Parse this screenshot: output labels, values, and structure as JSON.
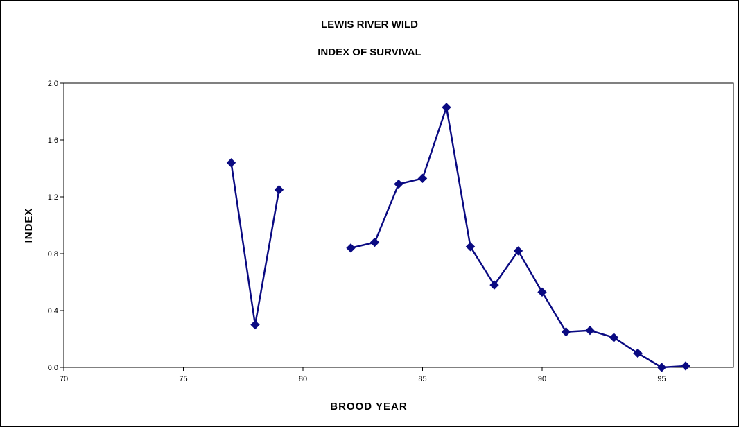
{
  "chart_data": {
    "type": "line",
    "title": [
      "LEWIS RIVER WILD",
      "INDEX OF SURVIVAL"
    ],
    "xlabel": "BROOD YEAR",
    "ylabel": "INDEX",
    "xlim": [
      70,
      98
    ],
    "ylim": [
      0,
      2.0
    ],
    "x_ticks": [
      70,
      75,
      80,
      85,
      90,
      95
    ],
    "x_tick_labels": [
      "70",
      "75",
      "80",
      "85",
      "90",
      "95"
    ],
    "y_ticks": [
      0,
      0.4,
      0.8,
      1.2,
      1.6,
      2.0
    ],
    "y_tick_labels": [
      "0.0",
      "0.4",
      "0.8",
      "1.2",
      "1.6",
      "2.0"
    ],
    "grid": false,
    "legend": "none",
    "series": [
      {
        "color": "#0A0A82",
        "marker": "diamond",
        "points": [
          {
            "x": 77,
            "y": 1.44
          },
          {
            "x": 78,
            "y": 0.3
          },
          {
            "x": 79,
            "y": 1.25
          },
          {
            "x": 80,
            "y": null
          },
          {
            "x": 81,
            "y": null
          },
          {
            "x": 82,
            "y": 0.84
          },
          {
            "x": 83,
            "y": 0.88
          },
          {
            "x": 84,
            "y": 1.29
          },
          {
            "x": 85,
            "y": 1.33
          },
          {
            "x": 86,
            "y": 1.83
          },
          {
            "x": 87,
            "y": 0.85
          },
          {
            "x": 88,
            "y": 0.58
          },
          {
            "x": 89,
            "y": 0.82
          },
          {
            "x": 90,
            "y": 0.53
          },
          {
            "x": 91,
            "y": 0.25
          },
          {
            "x": 92,
            "y": 0.26
          },
          {
            "x": 93,
            "y": 0.21
          },
          {
            "x": 94,
            "y": 0.1
          },
          {
            "x": 95,
            "y": 0.0
          },
          {
            "x": 96,
            "y": 0.01
          }
        ]
      }
    ]
  }
}
